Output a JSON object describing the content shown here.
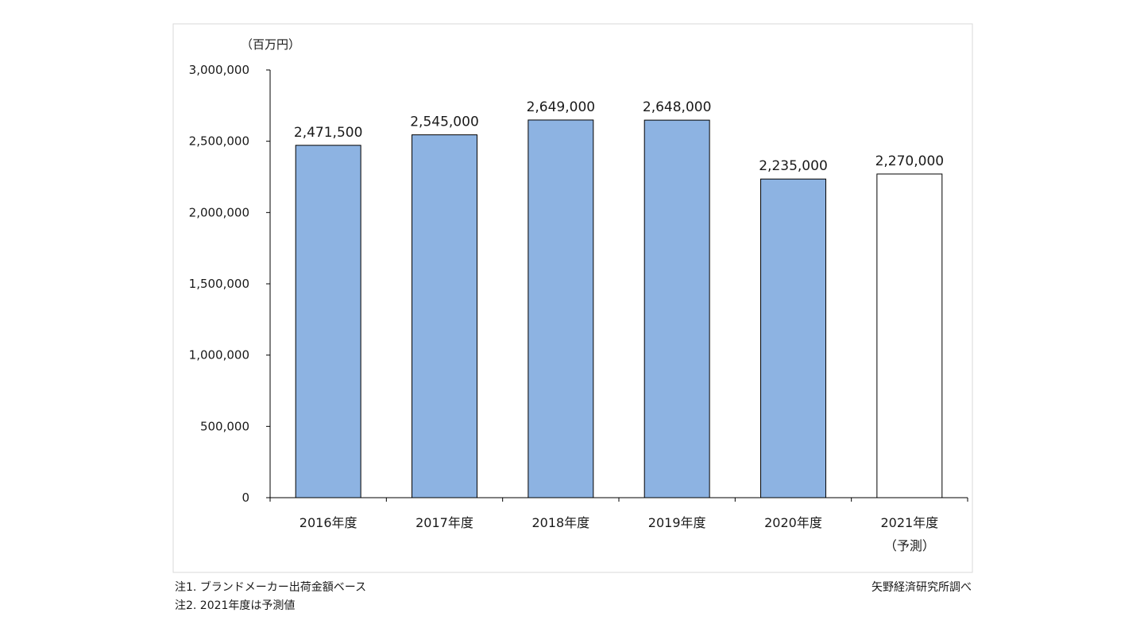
{
  "chart_data": {
    "type": "bar",
    "unit_label": "（百万円）",
    "categories": [
      "2016年度",
      "2017年度",
      "2018年度",
      "2019年度",
      "2020年度",
      "2021年度"
    ],
    "category_sublabels": [
      "",
      "",
      "",
      "",
      "",
      "（予測）"
    ],
    "values": [
      2471500,
      2545000,
      2649000,
      2648000,
      2235000,
      2270000
    ],
    "value_labels": [
      "2,471,500",
      "2,545,000",
      "2,649,000",
      "2,648,000",
      "2,235,000",
      "2,270,000"
    ],
    "forecast_flags": [
      false,
      false,
      false,
      false,
      false,
      true
    ],
    "ylim": [
      0,
      3000000
    ],
    "yticks": [
      0,
      500000,
      1000000,
      1500000,
      2000000,
      2500000,
      3000000
    ],
    "ytick_labels": [
      "0",
      "500,000",
      "1,000,000",
      "1,500,000",
      "2,000,000",
      "2,500,000",
      "3,000,000"
    ],
    "grid": false,
    "colors": {
      "bar_fill": "#8db3e2",
      "forecast_fill": "#ffffff",
      "bar_stroke": "#000000",
      "frame": "#d9d9d9"
    }
  },
  "notes": {
    "note1": "注1.  ブランドメーカー出荷金額ベース",
    "note2": "注2.  2021年度は予測値",
    "source": "矢野経済研究所調べ"
  }
}
